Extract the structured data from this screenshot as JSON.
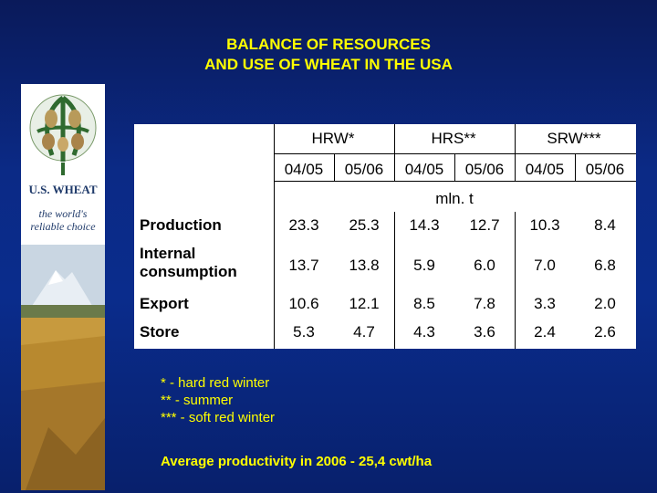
{
  "title": {
    "line1": "BALANCE OF RESOURCES",
    "line2": "AND USE OF WHEAT IN THE USA"
  },
  "logo": {
    "name": "U.S. WHEAT",
    "tagline": [
      "the world's",
      "reliable choice"
    ]
  },
  "table": {
    "groups": [
      "HRW*",
      "HRS**",
      "SRW***"
    ],
    "years": [
      "04/05",
      "05/06",
      "04/05",
      "05/06",
      "04/05",
      "05/06"
    ],
    "unit": "mln. t",
    "rows": [
      {
        "label": "Production",
        "values": [
          "23.3",
          "25.3",
          "14.3",
          "12.7",
          "10.3",
          "8.4"
        ]
      },
      {
        "label": "Internal consumption",
        "values": [
          "13.7",
          "13.8",
          "5.9",
          "6.0",
          "7.0",
          "6.8"
        ]
      },
      {
        "label": "Export",
        "values": [
          "10.6",
          "12.1",
          "8.5",
          "7.8",
          "3.3",
          "2.0"
        ]
      },
      {
        "label": "Store",
        "values": [
          "5.3",
          "4.7",
          "4.3",
          "3.6",
          "2.4",
          "2.6"
        ]
      }
    ]
  },
  "notes": [
    "* - hard red winter",
    "** - summer",
    "*** - soft red winter"
  ],
  "average": "Average productivity in 2006 - 25,4 cwt/ha",
  "colors": {
    "accent": "#ffff00",
    "background": "#0b2a86"
  }
}
